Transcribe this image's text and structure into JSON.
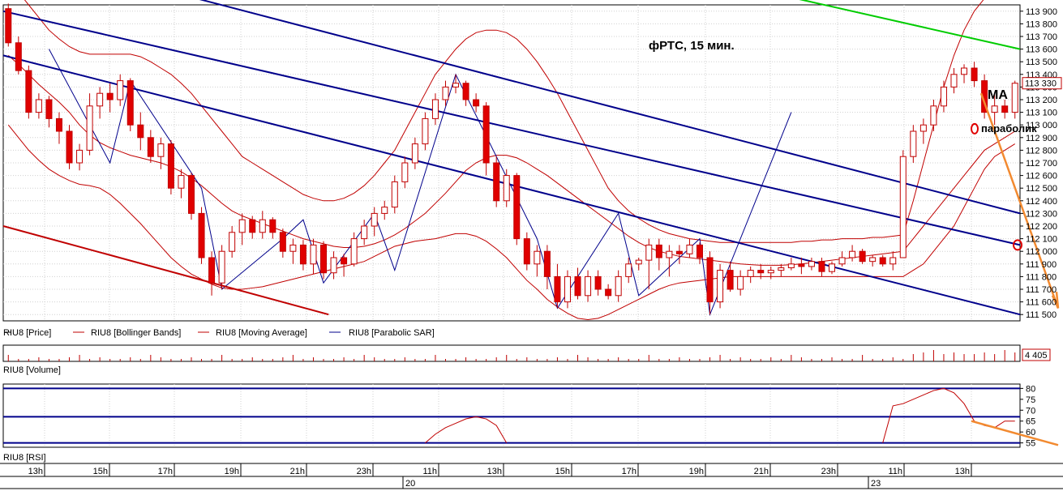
{
  "chart_data": {
    "type": "candlestick",
    "title": "фРТС, 15 мин.",
    "price_axis": {
      "ylim": [
        111450,
        113950
      ],
      "ticks": [
        113900,
        113800,
        113700,
        113600,
        113500,
        113400,
        113300,
        113200,
        113100,
        113000,
        112900,
        112800,
        112700,
        112600,
        112500,
        112400,
        112300,
        112200,
        112100,
        112000,
        111900,
        111800,
        111700,
        111600,
        111500
      ],
      "tick_labels": [
        "113 900",
        "113 800",
        "113 700",
        "113 600",
        "113 500",
        "113 400",
        "113 300",
        "113 200",
        "113 100",
        "113 000",
        "112 900",
        "112 800",
        "112 700",
        "112 600",
        "112 500",
        "112 400",
        "112 300",
        "112 200",
        "112 100",
        "112 000",
        "111 900",
        "111 800",
        "111 700",
        "111 600",
        "111 500"
      ],
      "current_label": "113 330"
    },
    "volume_axis": {
      "current_label": "4 405"
    },
    "rsi_axis": {
      "ylim": [
        53,
        82
      ],
      "ticks": [
        80,
        75,
        70,
        65,
        60,
        55
      ],
      "tick_labels": [
        "80",
        "75",
        "70",
        "65",
        "60",
        "55"
      ],
      "levels": [
        80,
        67,
        55
      ]
    },
    "legend": [
      {
        "name": "RIU8 [Price]",
        "color": "#000000"
      },
      {
        "name": "RIU8 [Bollinger Bands]",
        "color": "#c00000"
      },
      {
        "name": "RIU8 [Moving Average]",
        "color": "#c00000"
      },
      {
        "name": "RIU8 [Parabolic SAR]",
        "color": "#00008b"
      }
    ],
    "volume_label": "RIU8 [Volume]",
    "rsi_label": "RIU8 [RSI]",
    "time_labels": [
      "13h",
      "15h",
      "17h",
      "19h",
      "21h",
      "23h",
      "11h",
      "13h",
      "15h",
      "17h",
      "19h",
      "21h",
      "23h",
      "11h",
      "13h"
    ],
    "date_labels": [
      "20",
      "23"
    ],
    "candles": [
      [
        113920,
        113960,
        113620,
        113650
      ],
      [
        113650,
        113700,
        113400,
        113430
      ],
      [
        113430,
        113470,
        113050,
        113100
      ],
      [
        113100,
        113250,
        113050,
        113200
      ],
      [
        113200,
        113230,
        112980,
        113050
      ],
      [
        113050,
        113100,
        112850,
        112950
      ],
      [
        112950,
        113000,
        112650,
        112700
      ],
      [
        112700,
        112850,
        112640,
        112800
      ],
      [
        112800,
        113250,
        112760,
        113150
      ],
      [
        113150,
        113300,
        113050,
        113250
      ],
      [
        113250,
        113330,
        113100,
        113200
      ],
      [
        113200,
        113400,
        113150,
        113350
      ],
      [
        113350,
        113370,
        112950,
        113000
      ],
      [
        113000,
        113100,
        112800,
        112900
      ],
      [
        112900,
        112960,
        112700,
        112750
      ],
      [
        112750,
        112900,
        112650,
        112850
      ],
      [
        112850,
        112880,
        112450,
        112500
      ],
      [
        112500,
        112650,
        112420,
        112600
      ],
      [
        112600,
        112620,
        112250,
        112300
      ],
      [
        112300,
        112350,
        111900,
        111950
      ],
      [
        111950,
        112000,
        111650,
        111750
      ],
      [
        111750,
        112050,
        111700,
        112000
      ],
      [
        112000,
        112200,
        111950,
        112150
      ],
      [
        112150,
        112300,
        112050,
        112250
      ],
      [
        112250,
        112280,
        112100,
        112150
      ],
      [
        112150,
        112320,
        112100,
        112250
      ],
      [
        112250,
        112270,
        112100,
        112150
      ],
      [
        112150,
        112180,
        111950,
        112000
      ],
      [
        112000,
        112100,
        111900,
        112050
      ],
      [
        112050,
        112090,
        111850,
        111900
      ],
      [
        111900,
        112100,
        111820,
        112050
      ],
      [
        112050,
        112080,
        111780,
        111830
      ],
      [
        111830,
        112000,
        111780,
        111950
      ],
      [
        111950,
        111980,
        111800,
        111900
      ],
      [
        111900,
        112150,
        111880,
        112100
      ],
      [
        112100,
        112250,
        112050,
        112200
      ],
      [
        112200,
        112350,
        112120,
        112300
      ],
      [
        112300,
        112400,
        112250,
        112350
      ],
      [
        112350,
        112600,
        112300,
        112550
      ],
      [
        112550,
        112750,
        112500,
        112700
      ],
      [
        112700,
        112900,
        112650,
        112850
      ],
      [
        112850,
        113100,
        112800,
        113050
      ],
      [
        113050,
        113250,
        113000,
        113200
      ],
      [
        113200,
        113350,
        113150,
        113300
      ],
      [
        113300,
        113400,
        113250,
        113330
      ],
      [
        113330,
        113350,
        113150,
        113200
      ],
      [
        113200,
        113250,
        113100,
        113150
      ],
      [
        113150,
        113180,
        112600,
        112700
      ],
      [
        112700,
        112750,
        112350,
        112400
      ],
      [
        112400,
        112650,
        112350,
        112600
      ],
      [
        112600,
        112620,
        112050,
        112100
      ],
      [
        112100,
        112150,
        111850,
        111900
      ],
      [
        111900,
        112050,
        111800,
        112000
      ],
      [
        112000,
        112050,
        111700,
        111800
      ],
      [
        111800,
        111900,
        111550,
        111600
      ],
      [
        111600,
        111850,
        111550,
        111800
      ],
      [
        111800,
        111870,
        111620,
        111650
      ],
      [
        111650,
        111850,
        111600,
        111800
      ],
      [
        111800,
        111850,
        111650,
        111700
      ],
      [
        111700,
        111740,
        111620,
        111650
      ],
      [
        111650,
        111850,
        111600,
        111800
      ],
      [
        111800,
        111950,
        111750,
        111900
      ],
      [
        111900,
        111950,
        111850,
        111930
      ],
      [
        111930,
        112100,
        111700,
        112050
      ],
      [
        112050,
        112100,
        111850,
        111950
      ],
      [
        111950,
        112050,
        111800,
        112000
      ],
      [
        112000,
        112050,
        111900,
        111980
      ],
      [
        111980,
        112100,
        111950,
        112050
      ],
      [
        112050,
        112070,
        111900,
        111950
      ],
      [
        111950,
        112000,
        111500,
        111600
      ],
      [
        111600,
        111900,
        111550,
        111850
      ],
      [
        111850,
        111920,
        111680,
        111700
      ],
      [
        111700,
        111850,
        111650,
        111800
      ],
      [
        111800,
        111880,
        111750,
        111850
      ],
      [
        111850,
        111900,
        111780,
        111830
      ],
      [
        111830,
        111880,
        111780,
        111850
      ],
      [
        111850,
        111900,
        111800,
        111870
      ],
      [
        111870,
        111950,
        111850,
        111900
      ],
      [
        111900,
        111950,
        111820,
        111880
      ],
      [
        111880,
        111950,
        111850,
        111920
      ],
      [
        111920,
        111950,
        111800,
        111840
      ],
      [
        111840,
        111920,
        111820,
        111900
      ],
      [
        111900,
        112000,
        111880,
        111950
      ],
      [
        111950,
        112050,
        111920,
        112000
      ],
      [
        112000,
        112020,
        111900,
        111920
      ],
      [
        111920,
        111970,
        111880,
        111950
      ],
      [
        111950,
        111970,
        111880,
        111900
      ],
      [
        111900,
        112000,
        111850,
        111950
      ],
      [
        111950,
        112800,
        111950,
        112750
      ],
      [
        112750,
        113000,
        112700,
        112950
      ],
      [
        112950,
        113050,
        112850,
        113000
      ],
      [
        113000,
        113200,
        112950,
        113150
      ],
      [
        113150,
        113350,
        113100,
        113300
      ],
      [
        113300,
        113450,
        113250,
        113400
      ],
      [
        113400,
        113480,
        113330,
        113450
      ],
      [
        113450,
        113500,
        113300,
        113350
      ],
      [
        113350,
        113400,
        113050,
        113100
      ],
      [
        113100,
        113250,
        113000,
        113150
      ],
      [
        113150,
        113200,
        113050,
        113100
      ],
      [
        113100,
        113350,
        113050,
        113330
      ]
    ],
    "moving_average": [
      113550,
      113480,
      113400,
      113320,
      113250,
      113180,
      113100,
      113000,
      112920,
      112860,
      112820,
      112790,
      112760,
      112740,
      112720,
      112700,
      112670,
      112630,
      112580,
      112520,
      112450,
      112380,
      112320,
      112280,
      112250,
      112220,
      112190,
      112160,
      112130,
      112100,
      112080,
      112060,
      112040,
      112030,
      112030,
      112040,
      112060,
      112090,
      112130,
      112180,
      112240,
      112300,
      112380,
      112460,
      112550,
      112640,
      112700,
      112740,
      112760,
      112760,
      112740,
      112700,
      112650,
      112600,
      112540,
      112480,
      112420,
      112360,
      112300,
      112240,
      112180,
      112120,
      112070,
      112030,
      112000,
      111980,
      111960,
      111950,
      111940,
      111930,
      111920,
      111910,
      111900,
      111895,
      111890,
      111890,
      111890,
      111895,
      111900,
      111910,
      111920,
      111930,
      111940,
      111950,
      111960,
      111970,
      111980,
      111990,
      112000,
      112100,
      112200,
      112300,
      112400,
      112500,
      112600,
      112700,
      112800,
      112850,
      112900,
      112950
    ],
    "bollinger_upper": [
      114100,
      114050,
      113950,
      113850,
      113750,
      113680,
      113620,
      113580,
      113560,
      113560,
      113560,
      113560,
      113560,
      113540,
      113500,
      113450,
      113400,
      113330,
      113250,
      113150,
      113050,
      112950,
      112850,
      112750,
      112700,
      112650,
      112600,
      112550,
      112500,
      112450,
      112420,
      112400,
      112400,
      112420,
      112460,
      112520,
      112600,
      112700,
      112800,
      112950,
      113100,
      113250,
      113400,
      113500,
      113600,
      113680,
      113730,
      113750,
      113750,
      113730,
      113680,
      113600,
      113500,
      113380,
      113250,
      113100,
      112950,
      112800,
      112650,
      112500,
      112400,
      112320,
      112260,
      112210,
      112170,
      112140,
      112120,
      112100,
      112090,
      112080,
      112070,
      112070,
      112070,
      112070,
      112070,
      112070,
      112070,
      112070,
      112080,
      112080,
      112090,
      112090,
      112100,
      112100,
      112100,
      112110,
      112110,
      112120,
      112130,
      112400,
      112700,
      113000,
      113300,
      113550,
      113750,
      113900,
      114000,
      114050,
      114050,
      114050
    ],
    "bollinger_lower": [
      113000,
      112900,
      112800,
      112720,
      112650,
      112600,
      112560,
      112530,
      112520,
      112500,
      112450,
      112380,
      112300,
      112220,
      112130,
      112040,
      111950,
      111880,
      111820,
      111780,
      111740,
      111710,
      111700,
      111700,
      111710,
      111720,
      111740,
      111760,
      111780,
      111800,
      111820,
      111840,
      111860,
      111880,
      111900,
      111920,
      111960,
      112000,
      112040,
      112060,
      112080,
      112090,
      112100,
      112120,
      112140,
      112140,
      112120,
      112080,
      112020,
      111950,
      111860,
      111770,
      111700,
      111620,
      111560,
      111510,
      111470,
      111460,
      111470,
      111500,
      111540,
      111580,
      111620,
      111660,
      111700,
      111730,
      111750,
      111760,
      111770,
      111780,
      111790,
      111800,
      111800,
      111800,
      111800,
      111800,
      111800,
      111800,
      111800,
      111800,
      111800,
      111800,
      111800,
      111800,
      111800,
      111800,
      111800,
      111800,
      111800,
      111850,
      111900,
      112000,
      112100,
      112200,
      112350,
      112500,
      112650,
      112750,
      112800,
      112850
    ],
    "parabolic_sar": [
      {
        "x": 4,
        "y": 113600
      },
      {
        "x": 10,
        "y": 112700
      },
      {
        "x": 12,
        "y": 113350
      },
      {
        "x": 19,
        "y": 112500
      },
      {
        "x": 21,
        "y": 111700
      },
      {
        "x": 27,
        "y": 112100
      },
      {
        "x": 27,
        "y": 112100
      },
      {
        "x": 29,
        "y": 112250
      },
      {
        "x": 31,
        "y": 111750
      },
      {
        "x": 36,
        "y": 112300
      },
      {
        "x": 38,
        "y": 111850
      },
      {
        "x": 44,
        "y": 113400
      },
      {
        "x": 52,
        "y": 112100
      },
      {
        "x": 54,
        "y": 111550
      },
      {
        "x": 60,
        "y": 112300
      },
      {
        "x": 62,
        "y": 111650
      },
      {
        "x": 68,
        "y": 112100
      },
      {
        "x": 69,
        "y": 111500
      },
      {
        "x": 74,
        "y": 112500
      },
      {
        "x": 77,
        "y": 113100
      }
    ],
    "trend_lines": [
      {
        "name": "upper channel",
        "color": "#00008b",
        "x": [
          0,
          100
        ],
        "y": [
          113900,
          112050
        ]
      },
      {
        "name": "middle channel",
        "color": "#00008b",
        "x": [
          0,
          100
        ],
        "y": [
          113550,
          111500
        ]
      },
      {
        "name": "top channel",
        "color": "#00008b",
        "x": [
          0,
          100
        ],
        "y": [
          114400,
          112300
        ]
      },
      {
        "name": "resistance",
        "color": "#00cc00",
        "x": [
          78,
          100
        ],
        "y": [
          114000,
          113600
        ]
      },
      {
        "name": "support",
        "color": "#c00000",
        "x": [
          0,
          32
        ],
        "y": [
          112200,
          111500
        ]
      }
    ],
    "annotations": {
      "ma_label": "МА",
      "sar_label": "параболик"
    },
    "rsi_values": [
      null,
      null,
      null,
      null,
      null,
      null,
      null,
      null,
      null,
      null,
      null,
      null,
      null,
      null,
      null,
      null,
      null,
      null,
      null,
      null,
      null,
      null,
      null,
      null,
      null,
      null,
      null,
      null,
      null,
      null,
      null,
      null,
      null,
      null,
      null,
      null,
      null,
      null,
      null,
      null,
      null,
      55,
      59,
      62,
      64,
      66,
      67,
      66,
      63,
      55,
      null,
      null,
      null,
      null,
      null,
      null,
      null,
      null,
      null,
      null,
      null,
      null,
      null,
      null,
      null,
      null,
      null,
      null,
      null,
      null,
      null,
      null,
      null,
      null,
      null,
      null,
      null,
      null,
      null,
      null,
      null,
      null,
      null,
      null,
      null,
      null,
      55,
      72,
      73,
      75,
      77,
      79,
      80,
      78,
      73,
      65,
      63,
      62,
      65,
      65
    ]
  }
}
